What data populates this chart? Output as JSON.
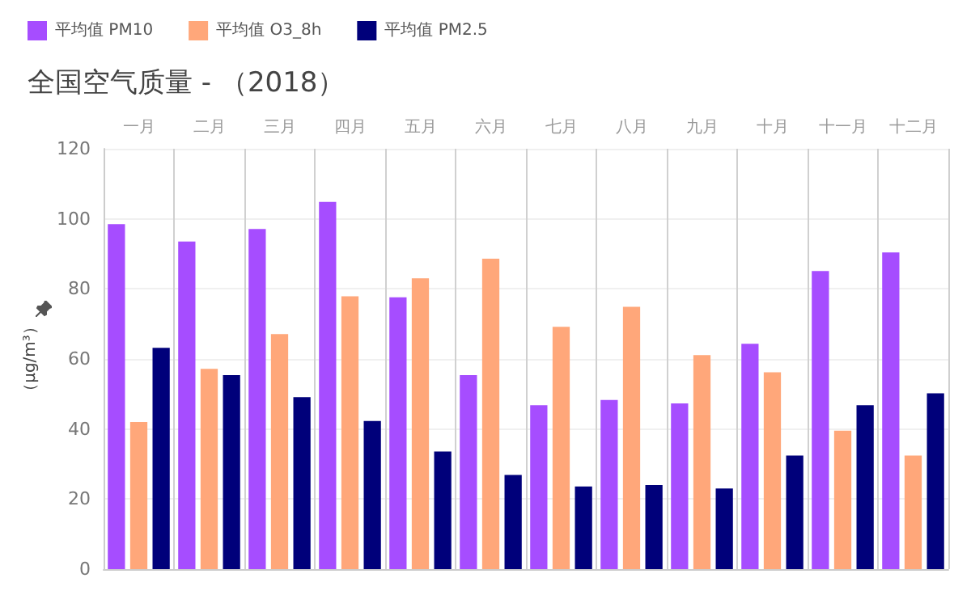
{
  "chart_data": {
    "type": "bar",
    "title": "全国空气质量 - （2018）",
    "ylabel": "（μg/m³）",
    "categories": [
      "一月",
      "二月",
      "三月",
      "四月",
      "五月",
      "六月",
      "七月",
      "八月",
      "九月",
      "十月",
      "十一月",
      "十二月"
    ],
    "series": [
      {
        "name": "平均值 PM10",
        "color": "#a64dff",
        "values": [
          98.5,
          93.5,
          97.1,
          104.8,
          77.6,
          55.4,
          46.8,
          48.3,
          47.3,
          64.3,
          85.1,
          90.4
        ]
      },
      {
        "name": "平均值 O3_8h",
        "color": "#ffa77a",
        "values": [
          42.0,
          57.2,
          67.1,
          77.9,
          83.0,
          88.6,
          69.2,
          74.9,
          61.1,
          56.2,
          39.5,
          32.4
        ]
      },
      {
        "name": "平均值 PM2.5",
        "color": "#00007a",
        "values": [
          63.2,
          55.4,
          49.1,
          42.3,
          33.6,
          26.9,
          23.6,
          24.0,
          23.0,
          32.4,
          46.8,
          50.2
        ]
      }
    ],
    "ylim": [
      0,
      120
    ],
    "yticks": [
      0,
      20,
      40,
      60,
      80,
      100,
      120
    ],
    "grid": true,
    "legend": "top left"
  }
}
